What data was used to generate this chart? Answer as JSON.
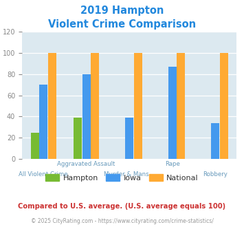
{
  "title_line1": "2019 Hampton",
  "title_line2": "Violent Crime Comparison",
  "title_color": "#2288dd",
  "hampton_values": [
    25,
    39,
    0,
    0,
    0
  ],
  "iowa_values": [
    70,
    80,
    39,
    87,
    34
  ],
  "national_values": [
    100,
    100,
    100,
    100,
    100
  ],
  "hampton_color": "#77bb33",
  "iowa_color": "#4499ee",
  "national_color": "#ffaa33",
  "ylim": [
    0,
    120
  ],
  "yticks": [
    0,
    20,
    40,
    60,
    80,
    100,
    120
  ],
  "plot_bg_color": "#dce9f0",
  "fig_bg_color": "#ffffff",
  "top_labels": [
    "",
    "Aggravated Assault",
    "",
    "Rape",
    ""
  ],
  "bot_labels": [
    "All Violent Crime",
    "",
    "Murder & Mans...",
    "",
    "Robbery"
  ],
  "label_color": "#6699bb",
  "footnote1": "Compared to U.S. average. (U.S. average equals 100)",
  "footnote1_color": "#cc3333",
  "footnote2": "© 2025 CityRating.com - https://www.cityrating.com/crime-statistics/",
  "footnote2_color": "#999999",
  "legend_labels": [
    "Hampton",
    "Iowa",
    "National"
  ],
  "legend_text_color": "#333333"
}
